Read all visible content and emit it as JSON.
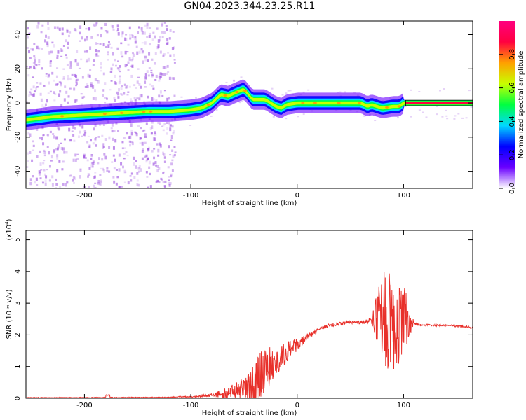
{
  "title": "GN04.2023.344.23.25.R11",
  "colors": {
    "snr_line": "#e8302a",
    "background_points": "#9b4fe0"
  },
  "chart_data": [
    {
      "type": "heatmap",
      "xlabel": "Height of straight line (km)",
      "ylabel": "Frequency (Hz)",
      "xlim": [
        -255,
        165
      ],
      "ylim": [
        -50,
        48
      ],
      "xticks": [
        -200,
        -100,
        0,
        100
      ],
      "yticks": [
        -40,
        -20,
        0,
        20,
        40
      ],
      "colorbar": {
        "label": "Normalized spectral amplitude",
        "range": [
          0,
          1
        ],
        "ticks": [
          "0.0",
          "0.2",
          "0.4",
          "0.6",
          "0.8"
        ],
        "colormap": [
          "#ffffff",
          "#6a00ff",
          "#0000ff",
          "#00d8ff",
          "#00ff40",
          "#c8ff00",
          "#ffa000",
          "#ff0040",
          "#ff0080"
        ]
      },
      "ridge": {
        "x": [
          -255,
          -230,
          -200,
          -170,
          -140,
          -120,
          -100,
          -90,
          -80,
          -72,
          -65,
          -58,
          -50,
          -42,
          -36,
          -30,
          -25,
          -20,
          -15,
          -10,
          0,
          20,
          40,
          60,
          66,
          70,
          80,
          90,
          96,
          100,
          105,
          165
        ],
        "frequency": [
          -10,
          -8,
          -7,
          -6,
          -5,
          -5,
          -4,
          -3,
          0,
          5,
          4,
          6,
          8,
          2,
          2,
          2,
          0,
          -2,
          -3,
          -1,
          0,
          0,
          0,
          0,
          -2,
          -1,
          -3,
          -2,
          -2,
          0,
          0,
          0
        ]
      }
    },
    {
      "type": "line",
      "xlabel": "Height of straight line (km)",
      "ylabel": "SNR (10 * v/v)",
      "yscale_label": "(x10",
      "yscale_exponent": "4",
      "yscale_suffix": ")",
      "xlim": [
        -255,
        165
      ],
      "ylim": [
        0,
        5.3
      ],
      "xticks": [
        -200,
        -100,
        0,
        100
      ],
      "yticks": [
        0,
        1,
        2,
        3,
        4,
        5
      ],
      "envelope": {
        "x": [
          -255,
          -180,
          -120,
          -100,
          -80,
          -60,
          -50,
          -45,
          -40,
          -35,
          -30,
          -20,
          -10,
          0,
          10,
          20,
          30,
          40,
          50,
          60,
          70,
          75,
          80,
          90,
          100,
          110,
          120,
          140,
          160,
          165
        ],
        "base": [
          0.02,
          0.02,
          0.03,
          0.05,
          0.1,
          0.2,
          0.35,
          0.3,
          0.4,
          0.7,
          0.9,
          1.1,
          1.45,
          1.7,
          1.95,
          2.15,
          2.3,
          2.35,
          2.4,
          2.4,
          2.45,
          2.5,
          2.5,
          2.4,
          2.4,
          2.35,
          2.32,
          2.3,
          2.25,
          2.22
        ],
        "spread": [
          0.0,
          0.01,
          0.01,
          0.02,
          0.05,
          0.25,
          0.3,
          0.6,
          0.9,
          0.8,
          0.7,
          0.5,
          0.35,
          0.2,
          0.1,
          0.06,
          0.05,
          0.05,
          0.05,
          0.05,
          0.1,
          0.8,
          1.6,
          1.6,
          1.2,
          0.05,
          0.03,
          0.03,
          0.03,
          0.03
        ]
      },
      "max_value": 5.3
    }
  ]
}
